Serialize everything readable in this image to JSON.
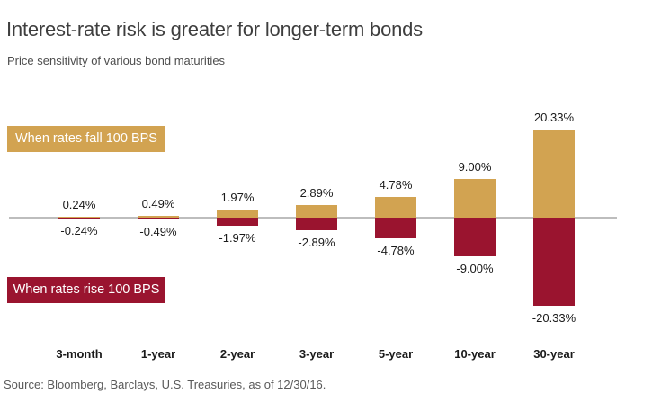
{
  "header": {
    "title": "Interest-rate risk is greater for longer-term bonds",
    "subtitle": "Price sensitivity of various bond maturities"
  },
  "legend": {
    "fall_label": "When rates fall 100 BPS",
    "rise_label": "When rates rise 100 BPS"
  },
  "source_note": "Source: Bloomberg, Barclays, U.S. Treasuries, as of 12/30/16.",
  "colors": {
    "gold": "#D2A351",
    "red": "#9A142F",
    "axis": "#BDBDBD"
  },
  "chart_data": {
    "type": "bar",
    "title": "Interest-rate risk is greater for longer-term bonds",
    "subtitle": "Price sensitivity of various bond maturities",
    "categories": [
      "3-month",
      "1-year",
      "2-year",
      "3-year",
      "5-year",
      "10-year",
      "30-year"
    ],
    "series": [
      {
        "name": "When rates fall 100 BPS",
        "color": "#D2A351",
        "values": [
          0.24,
          0.49,
          1.97,
          2.89,
          4.78,
          9.0,
          20.33
        ],
        "labels": [
          "0.24%",
          "0.49%",
          "1.97%",
          "2.89%",
          "4.78%",
          "9.00%",
          "20.33%"
        ]
      },
      {
        "name": "When rates rise 100 BPS",
        "color": "#9A142F",
        "values": [
          -0.24,
          -0.49,
          -1.97,
          -2.89,
          -4.78,
          -9.0,
          -20.33
        ],
        "labels": [
          "-0.24%",
          "-0.49%",
          "-1.97%",
          "-2.89%",
          "-4.78%",
          "-9.00%",
          "-20.33%"
        ]
      }
    ],
    "xlabel": "",
    "ylabel": "",
    "baseline": 0,
    "ylim": [
      -20.33,
      20.33
    ],
    "grid": false,
    "legend_position": "inline badges, left side above and below zero axis",
    "value_labels_shown": true
  }
}
